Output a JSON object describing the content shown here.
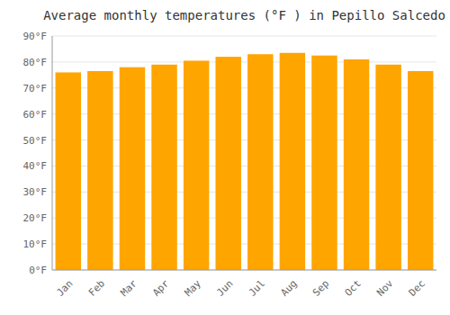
{
  "chart_data": {
    "type": "bar",
    "title": "Average monthly temperatures (°F ) in Pepillo Salcedo",
    "categories": [
      "Jan",
      "Feb",
      "Mar",
      "Apr",
      "May",
      "Jun",
      "Jul",
      "Aug",
      "Sep",
      "Oct",
      "Nov",
      "Dec"
    ],
    "values": [
      76,
      76.5,
      78,
      79,
      80.5,
      82,
      83,
      83.5,
      82.5,
      81,
      79,
      76.5
    ],
    "color": "#FFA500",
    "ylim": [
      0,
      90
    ],
    "yticks": [
      {
        "value": 0,
        "label": "0°F"
      },
      {
        "value": 10,
        "label": "10°F"
      },
      {
        "value": 20,
        "label": "20°F"
      },
      {
        "value": 30,
        "label": "30°F"
      },
      {
        "value": 40,
        "label": "40°F"
      },
      {
        "value": 50,
        "label": "50°F"
      },
      {
        "value": 60,
        "label": "60°F"
      },
      {
        "value": 70,
        "label": "70°F"
      },
      {
        "value": 80,
        "label": "80°F"
      },
      {
        "value": 90,
        "label": "90°F"
      }
    ],
    "grid": true
  }
}
